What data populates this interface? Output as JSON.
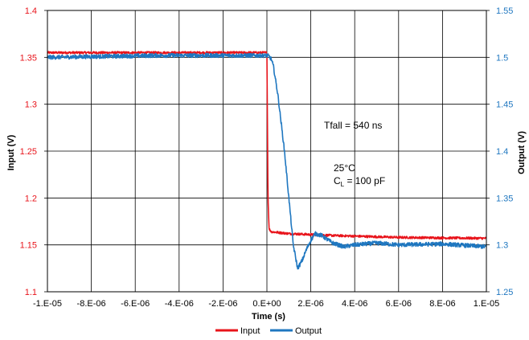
{
  "chart_data": {
    "type": "line",
    "xlabel": "Time (s)",
    "ylabel_left": "Input (V)",
    "ylabel_right": "Output (V)",
    "xlim": [
      -1e-05,
      1e-05
    ],
    "ylim_left": [
      1.1,
      1.4
    ],
    "ylim_right": [
      1.25,
      1.55
    ],
    "x_ticks": [
      "-1.E-05",
      "-8.E-06",
      "-6.E-06",
      "-4.E-06",
      "-2.E-06",
      "0.E+00",
      "2.E-06",
      "4.E-06",
      "6.E-06",
      "8.E-06",
      "1.E-05"
    ],
    "y_left_ticks": [
      "1.1",
      "1.15",
      "1.2",
      "1.25",
      "1.3",
      "1.35",
      "1.4"
    ],
    "y_right_ticks": [
      "1.25",
      "1.3",
      "1.35",
      "1.4",
      "1.45",
      "1.5",
      "1.55"
    ],
    "grid": true,
    "legend": "bottom",
    "annotations": {
      "tfall": "Tfall = 540 ns",
      "temp": "25°C",
      "cl_main": "C",
      "cl_sub": "L",
      "cl_rest": " = 100 pF"
    },
    "series": [
      {
        "name": "Input",
        "axis": "left",
        "color": "#e8141b",
        "x": [
          -1e-05,
          -5e-06,
          0,
          5e-08,
          1e-07,
          2e-07,
          1e-06,
          3e-06,
          6e-06,
          1e-05
        ],
        "y": [
          1.355,
          1.355,
          1.355,
          1.2,
          1.167,
          1.164,
          1.162,
          1.16,
          1.158,
          1.157
        ]
      },
      {
        "name": "Output",
        "axis": "right",
        "color": "#1f77c0",
        "x": [
          -1e-05,
          -5e-06,
          0,
          1e-07,
          2e-07,
          3e-07,
          5e-07,
          8e-07,
          1e-06,
          1.2e-06,
          1.4e-06,
          1.6e-06,
          1.8e-06,
          2e-06,
          2.2e-06,
          2.5e-06,
          2.8e-06,
          3e-06,
          3.5e-06,
          4e-06,
          5e-06,
          6e-06,
          8e-06,
          1e-05
        ],
        "y": [
          1.5,
          1.502,
          1.502,
          1.501,
          1.498,
          1.49,
          1.46,
          1.4,
          1.35,
          1.3,
          1.275,
          1.283,
          1.295,
          1.305,
          1.312,
          1.31,
          1.305,
          1.302,
          1.298,
          1.3,
          1.302,
          1.3,
          1.301,
          1.298
        ]
      }
    ]
  }
}
